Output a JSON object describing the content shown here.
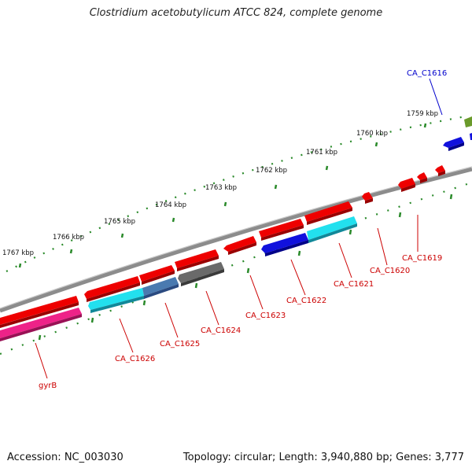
{
  "title": "Clostridium acetobutylicum ATCC 824, complete genome",
  "footer": {
    "accession": "Accession: NC_003030",
    "topology": "Topology: circular; Length: 3,940,880 bp; Genes: 3,777"
  },
  "ruler_labels": [
    "1759 kbp",
    "1760 kbp",
    "1761 kbp",
    "1762 kbp",
    "1763 kbp",
    "1764 kbp",
    "1765 kbp",
    "1766 kbp",
    "1767 kbp"
  ],
  "gene_labels": [
    "CA_C1616",
    "CA_C1619",
    "CA_C1620",
    "CA_C1621",
    "CA_C1622",
    "CA_C1623",
    "CA_C1624",
    "CA_C1625",
    "CA_C1626",
    "gyrB"
  ],
  "colors": {
    "backbone": "#8c8c8c",
    "ruler": "#2a8a2a",
    "red_gene": "#ee0000",
    "blue_gene": "#1111dd",
    "cyan_gene": "#22e0ee",
    "steel_gene": "#4a7ab0",
    "gray_gene": "#6a6a6a",
    "pink_gene": "#ee2288",
    "olive_gene": "#6a9a2a",
    "label_red": "#cc0000",
    "label_blue": "#0000cc"
  }
}
